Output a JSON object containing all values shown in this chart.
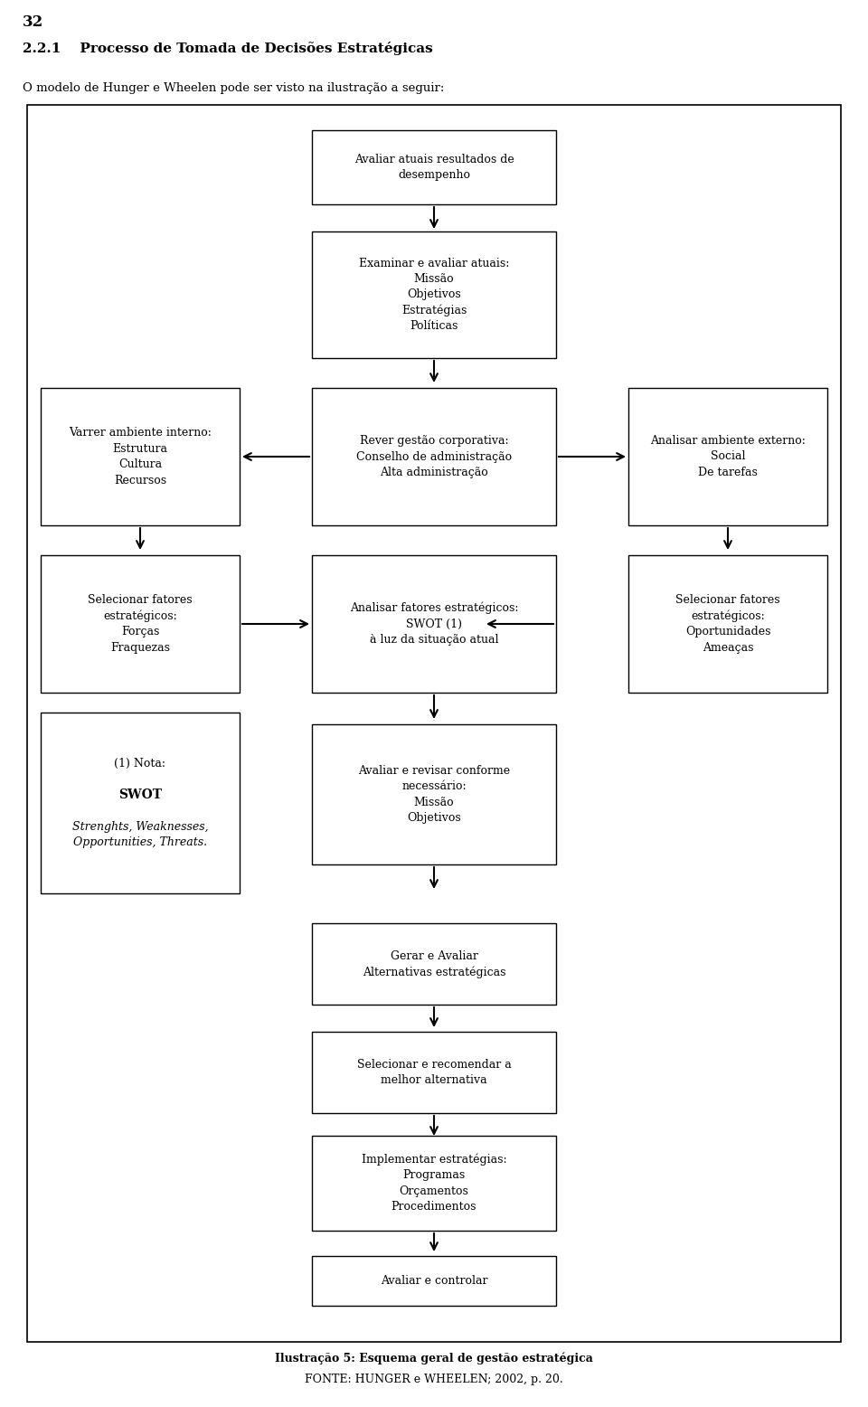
{
  "page_number": "32",
  "section_title": "2.2.1    Processo de Tomada de Decisões Estratégicas",
  "intro_text": "O modelo de Hunger e Wheelen pode ser visto na ilustração a seguir:",
  "caption": "Ilustração 5: Esquema geral de gestão estratégica",
  "caption2": "FONTE: HUNGER e WHEELEN; 2002, p. 20.",
  "bg_color": "#ffffff",
  "avaliar": "Avaliar atuais resultados de\ndesempenho",
  "examinar": "Examinar e avaliar atuais:\nMissão\nObjetivos\nEstratégias\nPolíticas",
  "varrer": "Varrer ambiente interno:\nEstrutura\nCultura\nRecursos",
  "rever": "Rever gestão corporativa:\nConselho de administração\nAlta administração",
  "analisar_ext": "Analisar ambiente externo:\nSocial\nDe tarefas",
  "selecionar_forcas": "Selecionar fatores\nestratégicos:\nForças\nFraquezas",
  "analisar_swot": "Analisar fatores estratégicos:\nSWOT (1)\nà luz da situação atual",
  "selecionar_oport": "Selecionar fatores\nestratégicos:\nOportunidades\nAmeaças",
  "nota_line1": "(1) Nota:",
  "nota_line2": "SWOT",
  "nota_line3": "Strenghts, Weaknesses,",
  "nota_line4": "Opportunities, Threats.",
  "avaliar_revisar": "Avaliar e revisar conforme\nnecessário:\nMissão\nObjetivos",
  "gerar": "Gerar e Avaliar\nAlternativas estratégicas",
  "selecionar_rec": "Selecionar e recomendar a\nmelhor alternativa",
  "implementar": "Implementar estratégias:\nProgramas\nOrçamentos\nProcedimentos",
  "controlar": "Avaliar e controlar"
}
